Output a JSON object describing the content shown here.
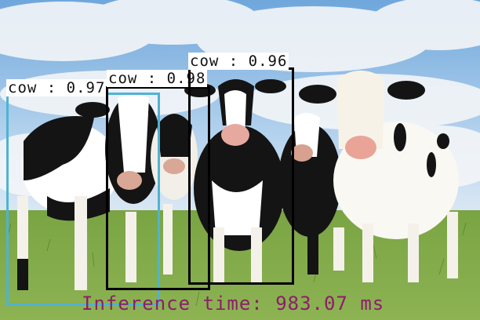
{
  "scene": {
    "subject": "herd of black-and-white holstein cows on grassland",
    "sky_color": "#a9cbe9",
    "grass_color": "#6d9a3a"
  },
  "detections": [
    {
      "label": "cow",
      "score": "0.97",
      "text": "cow : 0.97",
      "color": "#8c1e6a"
    },
    {
      "label": "cow",
      "score": "0.98",
      "text": "cow : 0.98",
      "color": "#4fb3d1"
    },
    {
      "label": "cow",
      "score": "0.96",
      "text": "cow : 0.96",
      "color": "#8c1e6a"
    }
  ],
  "inference": {
    "text": "Inference time: 983.07 ms",
    "color": "#8c1e6a"
  }
}
